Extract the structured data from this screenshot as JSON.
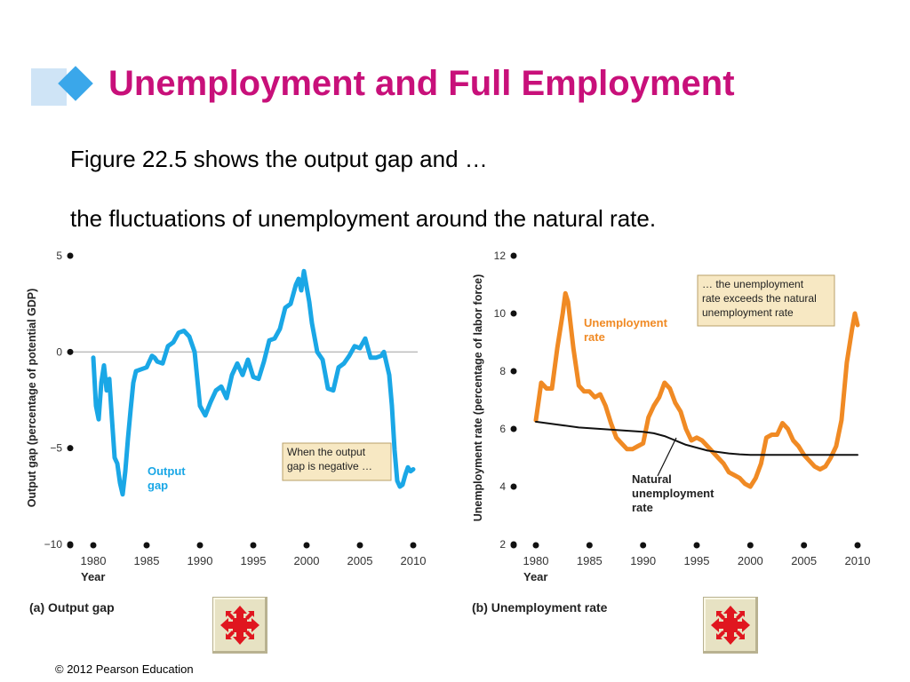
{
  "slide": {
    "title": "Unemployment and Full Employment",
    "line1": "Figure 22.5 shows the output gap and …",
    "line2": "the fluctuations of unemployment around the natural rate.",
    "copyright": "© 2012 Pearson Education",
    "colors": {
      "title": "#c8107a",
      "accent_diamond": "#3aa7ea",
      "accent_bar": "#cfe4f6"
    },
    "nav_icon": "move-arrows-icon"
  },
  "chart_data": [
    {
      "type": "line",
      "panel_label": "(a) Output gap",
      "xlabel": "Year",
      "ylabel": "Output gap (percentage of potential GDP)",
      "xlim": [
        1980,
        2010
      ],
      "ylim": [
        -10,
        5
      ],
      "xticks": [
        1980,
        1985,
        1990,
        1995,
        2000,
        2005,
        2010
      ],
      "yticks": [
        5,
        0,
        -5,
        -10
      ],
      "ytick_labels": [
        "5",
        "0",
        "−5",
        "−10"
      ],
      "zero_line": true,
      "series": [
        {
          "name": "Output gap",
          "name_lines": [
            "Output",
            "gap"
          ],
          "color": "#1aa7e6",
          "x": [
            1980.0,
            1980.25,
            1980.5,
            1980.75,
            1981.0,
            1981.25,
            1981.5,
            1981.75,
            1982.0,
            1982.25,
            1982.5,
            1982.75,
            1983.0,
            1983.25,
            1983.5,
            1983.75,
            1984.0,
            1984.5,
            1985.0,
            1985.5,
            1985.75,
            1986.0,
            1986.5,
            1987.0,
            1987.5,
            1988.0,
            1988.5,
            1989.0,
            1989.5,
            1990.0,
            1990.5,
            1991.0,
            1991.5,
            1992.0,
            1992.5,
            1993.0,
            1993.5,
            1994.0,
            1994.5,
            1995.0,
            1995.5,
            1996.0,
            1996.5,
            1997.0,
            1997.5,
            1998.0,
            1998.5,
            1999.0,
            1999.25,
            1999.5,
            1999.75,
            2000.0,
            2000.25,
            2000.5,
            2001.0,
            2001.5,
            2002.0,
            2002.5,
            2003.0,
            2003.5,
            2004.0,
            2004.5,
            2005.0,
            2005.5,
            2006.0,
            2006.5,
            2007.0,
            2007.25,
            2007.5,
            2007.75,
            2008.0,
            2008.25,
            2008.5,
            2008.75,
            2009.0,
            2009.25,
            2009.5,
            2009.75,
            2010.0
          ],
          "values": [
            -0.3,
            -2.8,
            -3.5,
            -1.6,
            -0.7,
            -2.0,
            -1.4,
            -3.5,
            -5.5,
            -5.8,
            -6.8,
            -7.4,
            -6.2,
            -4.5,
            -3.0,
            -1.6,
            -1.0,
            -0.9,
            -0.8,
            -0.2,
            -0.3,
            -0.5,
            -0.6,
            0.3,
            0.5,
            1.0,
            1.1,
            0.8,
            0.0,
            -2.8,
            -3.3,
            -2.6,
            -2.0,
            -1.8,
            -2.4,
            -1.2,
            -0.6,
            -1.2,
            -0.4,
            -1.3,
            -1.4,
            -0.5,
            0.6,
            0.7,
            1.2,
            2.3,
            2.5,
            3.5,
            3.8,
            3.2,
            4.2,
            3.4,
            2.6,
            1.5,
            0.0,
            -0.4,
            -1.9,
            -2.0,
            -0.8,
            -0.6,
            -0.2,
            0.3,
            0.2,
            0.7,
            -0.3,
            -0.3,
            -0.2,
            0.0,
            -0.6,
            -1.2,
            -2.8,
            -5.1,
            -6.7,
            -7.0,
            -6.9,
            -6.4,
            -6.0,
            -6.2,
            -6.1
          ]
        }
      ],
      "annotation": {
        "lines": [
          "When the output",
          "gap is negative …"
        ],
        "box_color": "#f7e8c3"
      }
    },
    {
      "type": "line",
      "panel_label": "(b) Unemployment rate",
      "xlabel": "Year",
      "ylabel": "Unemployment rate (percentage of labor force)",
      "xlim": [
        1980,
        2010
      ],
      "ylim": [
        2,
        12
      ],
      "xticks": [
        1980,
        1985,
        1990,
        1995,
        2000,
        2005,
        2010
      ],
      "yticks": [
        12,
        10,
        8,
        6,
        4,
        2
      ],
      "ytick_labels": [
        "12",
        "10",
        "8",
        "6",
        "4",
        "2"
      ],
      "series": [
        {
          "name": "Unemployment rate",
          "name_lines": [
            "Unemployment",
            "rate"
          ],
          "color": "#f08a24",
          "x": [
            1980.0,
            1980.5,
            1981.0,
            1981.5,
            1982.0,
            1982.5,
            1982.75,
            1983.0,
            1983.5,
            1984.0,
            1984.5,
            1985.0,
            1985.5,
            1986.0,
            1986.5,
            1987.0,
            1987.5,
            1988.0,
            1988.5,
            1989.0,
            1989.5,
            1990.0,
            1990.5,
            1991.0,
            1991.5,
            1992.0,
            1992.5,
            1993.0,
            1993.5,
            1994.0,
            1994.5,
            1995.0,
            1995.5,
            1996.0,
            1996.5,
            1997.0,
            1997.5,
            1998.0,
            1998.5,
            1999.0,
            1999.5,
            2000.0,
            2000.5,
            2001.0,
            2001.5,
            2002.0,
            2002.5,
            2003.0,
            2003.5,
            2004.0,
            2004.5,
            2005.0,
            2005.5,
            2006.0,
            2006.5,
            2007.0,
            2007.5,
            2008.0,
            2008.5,
            2009.0,
            2009.5,
            2009.75,
            2010.0
          ],
          "values": [
            6.3,
            7.6,
            7.4,
            7.4,
            8.8,
            10.0,
            10.7,
            10.4,
            8.8,
            7.5,
            7.3,
            7.3,
            7.1,
            7.2,
            6.8,
            6.2,
            5.7,
            5.5,
            5.3,
            5.3,
            5.4,
            5.5,
            6.4,
            6.8,
            7.1,
            7.6,
            7.4,
            6.9,
            6.6,
            6.0,
            5.6,
            5.7,
            5.6,
            5.4,
            5.2,
            5.0,
            4.8,
            4.5,
            4.4,
            4.3,
            4.1,
            4.0,
            4.3,
            4.8,
            5.7,
            5.8,
            5.8,
            6.2,
            6.0,
            5.6,
            5.4,
            5.1,
            4.9,
            4.7,
            4.6,
            4.7,
            5.0,
            5.4,
            6.3,
            8.3,
            9.5,
            10.0,
            9.6
          ]
        },
        {
          "name": "Natural unemployment rate",
          "name_lines": [
            "Natural",
            "unemployment",
            "rate"
          ],
          "color": "#111111",
          "x": [
            1980,
            1982,
            1984,
            1986,
            1988,
            1990,
            1991,
            1992,
            1993,
            1994,
            1995,
            1996,
            1997,
            1998,
            1999,
            2000,
            2002,
            2004,
            2006,
            2008,
            2010
          ],
          "values": [
            6.25,
            6.15,
            6.05,
            6.0,
            5.95,
            5.9,
            5.85,
            5.75,
            5.6,
            5.45,
            5.35,
            5.25,
            5.2,
            5.15,
            5.12,
            5.1,
            5.1,
            5.1,
            5.1,
            5.1,
            5.1
          ]
        }
      ],
      "annotation": {
        "lines": [
          "… the unemployment",
          "rate exceeds the natural",
          "unemployment rate"
        ],
        "box_color": "#f7e8c3"
      }
    }
  ]
}
